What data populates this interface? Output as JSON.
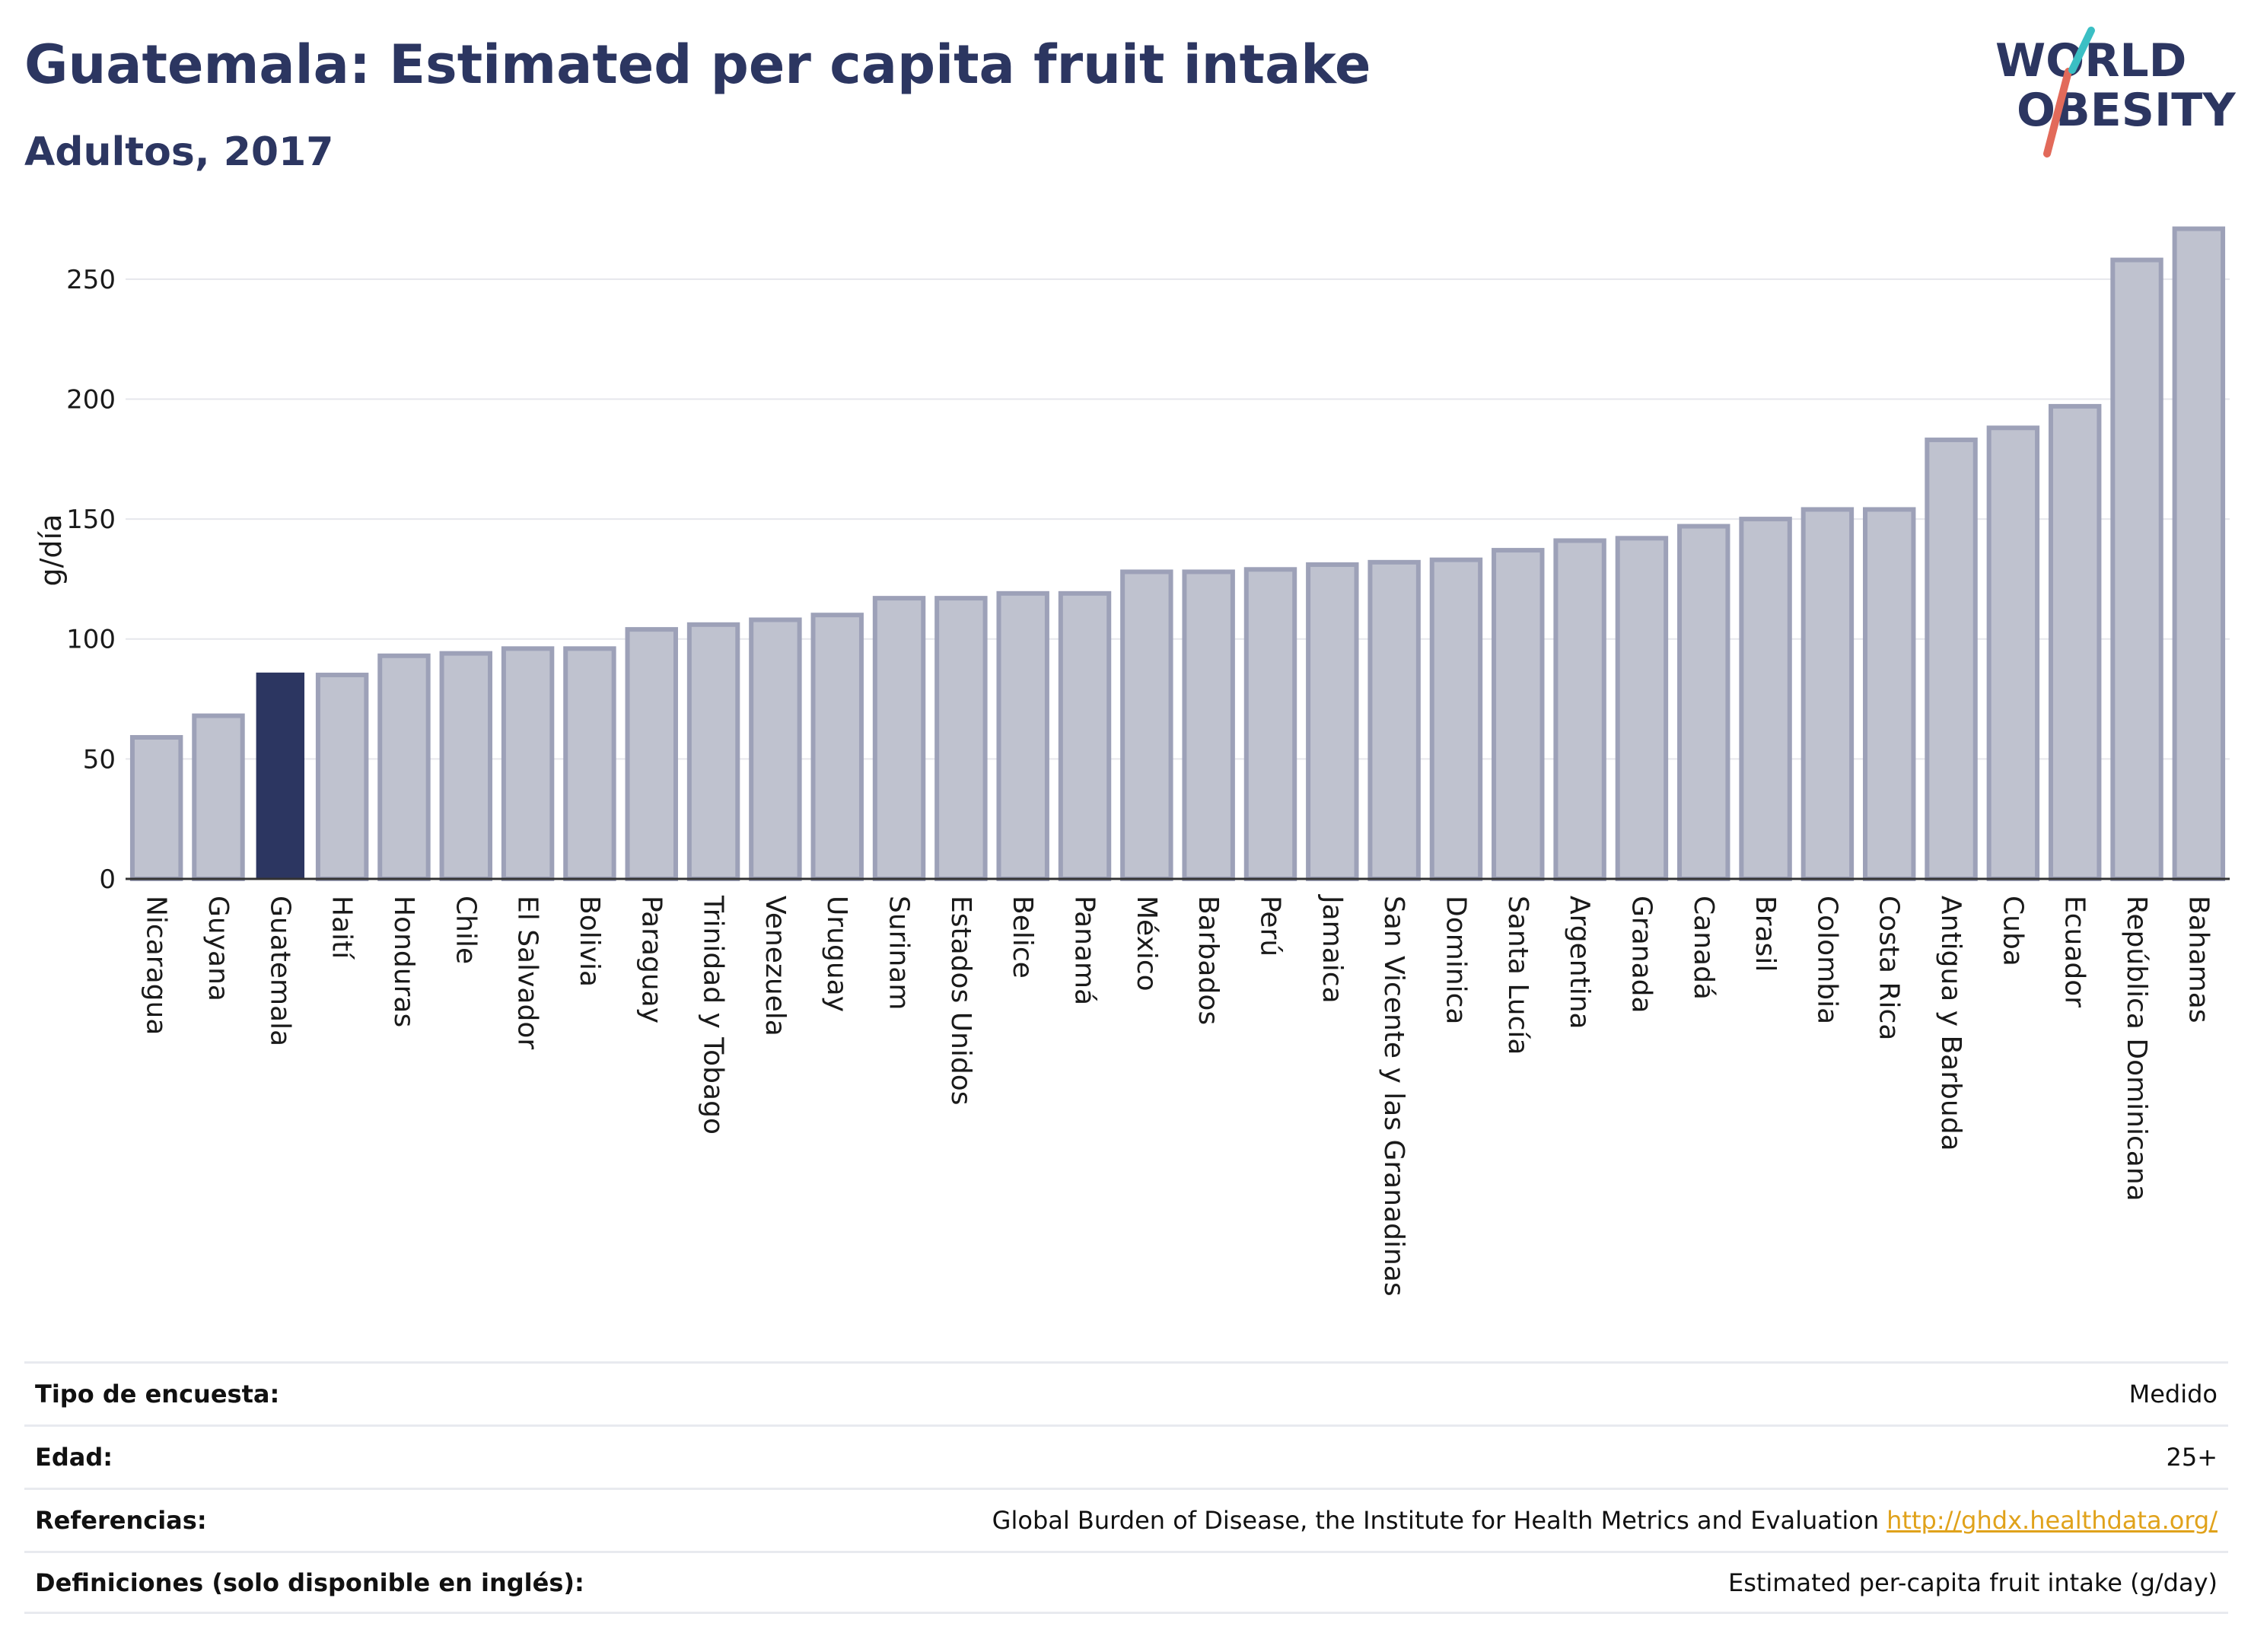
{
  "header": {
    "title": "Guatemala: Estimated per capita fruit intake",
    "subtitle": "Adultos, 2017"
  },
  "logo": {
    "line1": "WORLD",
    "line2": "OBESITY",
    "colors": [
      "#2c3661",
      "#e26a5a",
      "#3bbfc4"
    ]
  },
  "chart_data": {
    "type": "bar",
    "ylabel": "g/día",
    "xlabel": "",
    "ylim": [
      0,
      275
    ],
    "yticks": [
      0,
      50,
      100,
      150,
      200,
      250
    ],
    "grid": true,
    "highlight": "Guatemala",
    "colors": {
      "highlight": "#2c3661",
      "default": "#bfc2cf",
      "default_border": "#9da1b8"
    },
    "categories": [
      "Nicaragua",
      "Guyana",
      "Guatemala",
      "Haití",
      "Honduras",
      "Chile",
      "El Salvador",
      "Bolivia",
      "Paraguay",
      "Trinidad y Tobago",
      "Venezuela",
      "Uruguay",
      "Surinam",
      "Estados Unidos",
      "Belice",
      "Panamá",
      "México",
      "Barbados",
      "Perú",
      "Jamaica",
      "San Vicente y las Granadinas",
      "Dominica",
      "Santa Lucía",
      "Argentina",
      "Granada",
      "Canadá",
      "Brasil",
      "Colombia",
      "Costa Rica",
      "Antigua y Barbuda",
      "Cuba",
      "Ecuador",
      "República Dominicana",
      "Bahamas"
    ],
    "values": [
      59,
      68,
      86,
      85,
      93,
      94,
      96,
      96,
      104,
      106,
      108,
      110,
      117,
      117,
      119,
      119,
      128,
      128,
      129,
      131,
      132,
      133,
      137,
      141,
      142,
      147,
      150,
      154,
      154,
      183,
      188,
      197,
      258,
      271
    ]
  },
  "meta": [
    {
      "label": "Tipo de encuesta:",
      "value": "Medido"
    },
    {
      "label": "Edad:",
      "value": "25+"
    },
    {
      "label": "Referencias:",
      "value": "Global Burden of Disease, the Institute for Health Metrics and Evaluation",
      "link": "http://ghdx.healthdata.org/"
    },
    {
      "label": "Definiciones (solo disponible en inglés):",
      "value": "Estimated per-capita fruit intake (g/day)"
    }
  ]
}
